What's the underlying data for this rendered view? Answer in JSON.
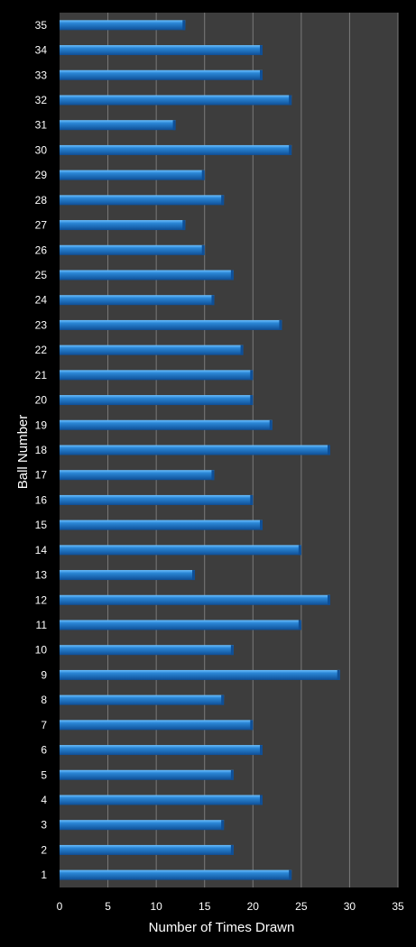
{
  "chart_data": {
    "type": "bar",
    "orientation": "horizontal",
    "title": "",
    "xlabel": "Number of Times Drawn",
    "ylabel": "Ball Number",
    "xlim": [
      0,
      35
    ],
    "xticks": [
      0,
      5,
      10,
      15,
      20,
      25,
      30,
      35
    ],
    "grid": true,
    "legend": "none",
    "categories": [
      "1",
      "2",
      "3",
      "4",
      "5",
      "6",
      "7",
      "8",
      "9",
      "10",
      "11",
      "12",
      "13",
      "14",
      "15",
      "16",
      "17",
      "18",
      "19",
      "20",
      "21",
      "22",
      "23",
      "24",
      "25",
      "26",
      "27",
      "28",
      "29",
      "30",
      "31",
      "32",
      "33",
      "34",
      "35"
    ],
    "values": [
      24,
      18,
      17,
      21,
      18,
      21,
      20,
      17,
      29,
      18,
      25,
      28,
      14,
      25,
      21,
      20,
      16,
      28,
      22,
      20,
      20,
      19,
      23,
      16,
      18,
      15,
      13,
      17,
      15,
      24,
      12,
      24,
      21,
      21,
      13
    ],
    "colors": {
      "bar": "#2a86d6",
      "bar_light": "#6cc0ff",
      "bar_dark": "#0f4f96",
      "plot_bg": "#3d3d3d",
      "page_bg": "#000000",
      "grid": "#7a7a7a"
    }
  }
}
